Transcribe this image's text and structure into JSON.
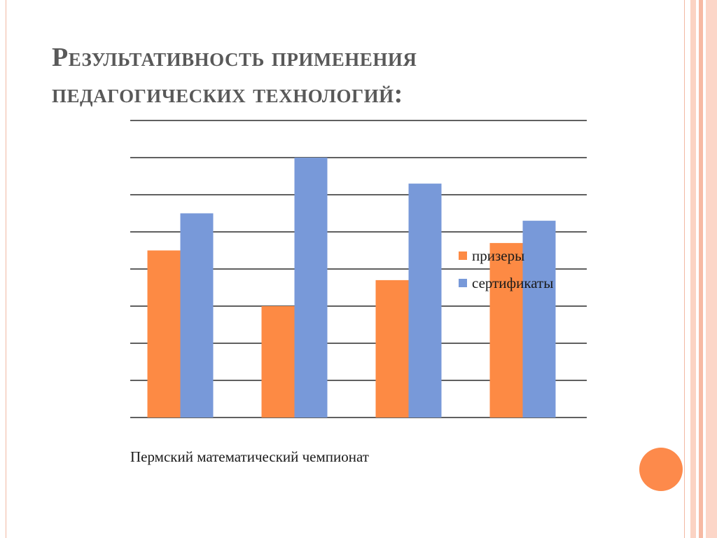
{
  "slide": {
    "title": "Результативность применения педагогических технологий:",
    "caption": "Пермский математический чемпионат"
  },
  "colors": {
    "accent": "#fd8a4b",
    "frame_line": "#f2b8a2",
    "stripe_light": "#fbd3c3",
    "gridline": "#000000"
  },
  "chart_data": {
    "type": "bar",
    "categories": [
      "",
      "",
      "",
      ""
    ],
    "series": [
      {
        "name": "призеры",
        "color": "#fd8a44",
        "values": [
          4.5,
          3.0,
          3.7,
          4.7
        ]
      },
      {
        "name": "сертификаты",
        "color": "#7899d9",
        "values": [
          5.5,
          7.0,
          6.3,
          5.3
        ]
      }
    ],
    "ylim": [
      0,
      8
    ],
    "grid": true,
    "legend": "right",
    "title": "",
    "xlabel": "",
    "ylabel": ""
  }
}
